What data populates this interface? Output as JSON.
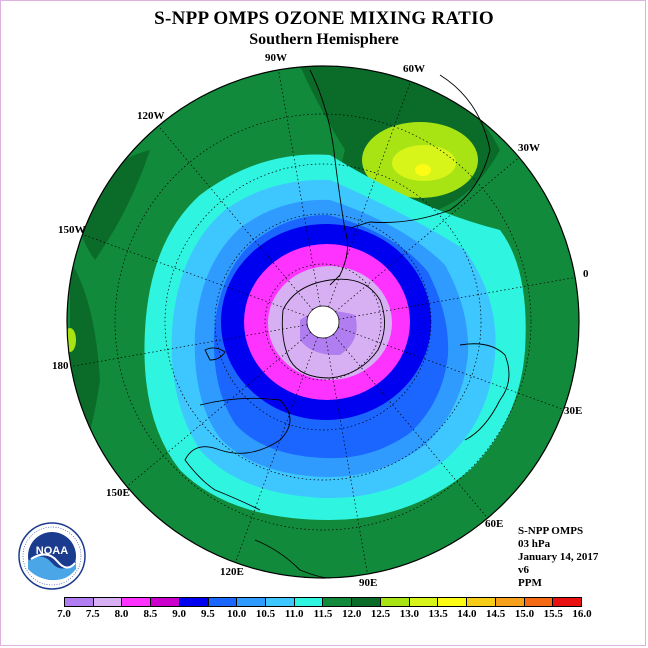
{
  "title": "S-NPP OMPS OZONE MIXING RATIO",
  "subtitle": "Southern Hemisphere",
  "longitude_labels": [
    "90W",
    "60W",
    "120W",
    "30W",
    "150W",
    "0",
    "180",
    "30E",
    "150E",
    "60E",
    "120E",
    "90E"
  ],
  "info": {
    "instrument": "S-NPP OMPS",
    "level": "03 hPa",
    "date": "January 14, 2017",
    "version": "v6",
    "units": "PPM"
  },
  "logo": {
    "text": "NOAA",
    "ring_text": "NATIONAL OCEANIC AND ATMOSPHERIC ADMINISTRATION · U.S. DEPARTMENT OF COMMERCE"
  },
  "colorbar": {
    "ticks": [
      "7.0",
      "7.5",
      "8.0",
      "8.5",
      "9.0",
      "9.5",
      "10.0",
      "10.5",
      "11.0",
      "11.5",
      "12.0",
      "12.5",
      "13.0",
      "13.5",
      "14.0",
      "14.5",
      "15.0",
      "15.5",
      "16.0"
    ],
    "colors": [
      "#b07ef0",
      "#d6b0f2",
      "#ff33ff",
      "#cc00cc",
      "#0000f0",
      "#1a66ff",
      "#2f9bff",
      "#3ec6ff",
      "#2ff5e0",
      "#128a3c",
      "#0b6c2a",
      "#a8e414",
      "#d8f51a",
      "#fbfb14",
      "#f7cd18",
      "#f7a01c",
      "#f56b14",
      "#e81010",
      "#8a5a3e"
    ]
  }
}
